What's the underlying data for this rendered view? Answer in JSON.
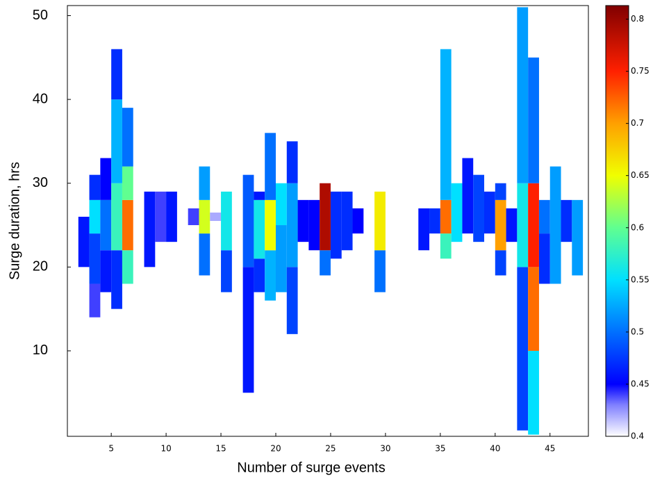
{
  "chart_data": {
    "type": "heatmap",
    "x_label": "Number of surge events",
    "y_label": "Surge duration, hrs",
    "xlim": [
      1,
      48.5
    ],
    "ylim": [
      -0.2,
      51.2
    ],
    "xticks": [
      5,
      10,
      15,
      20,
      25,
      30,
      35,
      40,
      45
    ],
    "yticks": [
      10,
      20,
      30,
      40,
      50
    ],
    "clim": [
      0.4,
      0.813
    ],
    "cticks": [
      0.4,
      0.45,
      0.5,
      0.55,
      0.6,
      0.65,
      0.7,
      0.75,
      0.8
    ],
    "colormap": [
      [
        0.4,
        "#ffffff"
      ],
      [
        0.43,
        "#8080ff"
      ],
      [
        0.45,
        "#0000ff"
      ],
      [
        0.5,
        "#0070ff"
      ],
      [
        0.55,
        "#00e0ff"
      ],
      [
        0.6,
        "#60ff90"
      ],
      [
        0.65,
        "#f0ff00"
      ],
      [
        0.7,
        "#ffa000"
      ],
      [
        0.75,
        "#ff2000"
      ],
      [
        0.813,
        "#800000"
      ]
    ],
    "columns": [
      {
        "x": 2,
        "segments": [
          [
            20,
            26,
            0.46
          ]
        ]
      },
      {
        "x": 3,
        "segments": [
          [
            14,
            18,
            0.44
          ],
          [
            18,
            24,
            0.48
          ],
          [
            24,
            28,
            0.55
          ],
          [
            28,
            31,
            0.47
          ]
        ]
      },
      {
        "x": 4,
        "segments": [
          [
            17,
            22,
            0.46
          ],
          [
            22,
            28,
            0.5
          ],
          [
            28,
            33,
            0.45
          ]
        ]
      },
      {
        "x": 5,
        "segments": [
          [
            15,
            22,
            0.47
          ],
          [
            22,
            30,
            0.58
          ],
          [
            30,
            40,
            0.53
          ],
          [
            40,
            46,
            0.47
          ]
        ]
      },
      {
        "x": 6,
        "segments": [
          [
            18,
            22,
            0.58
          ],
          [
            22,
            28,
            0.72
          ],
          [
            28,
            32,
            0.6
          ],
          [
            32,
            39,
            0.5
          ]
        ]
      },
      {
        "x": 8,
        "segments": [
          [
            20,
            29,
            0.46
          ]
        ]
      },
      {
        "x": 9,
        "segments": [
          [
            23,
            29,
            0.44
          ]
        ]
      },
      {
        "x": 10,
        "segments": [
          [
            23,
            29,
            0.46
          ]
        ]
      },
      {
        "x": 12,
        "segments": [
          [
            25,
            27,
            0.44
          ]
        ]
      },
      {
        "x": 13,
        "segments": [
          [
            19,
            24,
            0.5
          ],
          [
            24,
            28,
            0.64
          ],
          [
            28,
            32,
            0.52
          ]
        ]
      },
      {
        "x": 14,
        "segments": [
          [
            25.5,
            26.5,
            0.42
          ]
        ]
      },
      {
        "x": 15,
        "segments": [
          [
            17,
            22,
            0.48
          ],
          [
            22,
            29,
            0.56
          ]
        ]
      },
      {
        "x": 17,
        "segments": [
          [
            5,
            20,
            0.46
          ],
          [
            20,
            31,
            0.49
          ]
        ]
      },
      {
        "x": 18,
        "segments": [
          [
            17,
            21,
            0.47
          ],
          [
            21,
            28,
            0.56
          ],
          [
            28,
            29,
            0.46
          ]
        ]
      },
      {
        "x": 19,
        "segments": [
          [
            16,
            22,
            0.53
          ],
          [
            22,
            28,
            0.65
          ],
          [
            28,
            36,
            0.5
          ]
        ]
      },
      {
        "x": 20,
        "segments": [
          [
            17,
            25,
            0.52
          ],
          [
            25,
            30,
            0.55
          ]
        ]
      },
      {
        "x": 21,
        "segments": [
          [
            12,
            20,
            0.48
          ],
          [
            20,
            30,
            0.52
          ],
          [
            30,
            35,
            0.47
          ]
        ]
      },
      {
        "x": 22,
        "segments": [
          [
            23,
            28,
            0.45
          ]
        ]
      },
      {
        "x": 23,
        "segments": [
          [
            22,
            28,
            0.45
          ]
        ]
      },
      {
        "x": 24,
        "segments": [
          [
            19,
            22,
            0.5
          ],
          [
            22,
            30,
            0.79
          ]
        ]
      },
      {
        "x": 25,
        "segments": [
          [
            21,
            29,
            0.47
          ]
        ]
      },
      {
        "x": 26,
        "segments": [
          [
            22,
            29,
            0.47
          ]
        ]
      },
      {
        "x": 27,
        "segments": [
          [
            24,
            27,
            0.45
          ]
        ]
      },
      {
        "x": 29,
        "segments": [
          [
            17,
            22,
            0.5
          ],
          [
            22,
            29,
            0.66
          ]
        ]
      },
      {
        "x": 33,
        "segments": [
          [
            22,
            27,
            0.46
          ]
        ]
      },
      {
        "x": 34,
        "segments": [
          [
            24,
            27,
            0.47
          ]
        ]
      },
      {
        "x": 35,
        "segments": [
          [
            21,
            24,
            0.58
          ],
          [
            24,
            28,
            0.72
          ],
          [
            28,
            46,
            0.53
          ]
        ]
      },
      {
        "x": 36,
        "segments": [
          [
            23,
            30,
            0.55
          ]
        ]
      },
      {
        "x": 37,
        "segments": [
          [
            24,
            33,
            0.46
          ]
        ]
      },
      {
        "x": 38,
        "segments": [
          [
            23,
            31,
            0.48
          ]
        ]
      },
      {
        "x": 39,
        "segments": [
          [
            24,
            29,
            0.47
          ]
        ]
      },
      {
        "x": 40,
        "segments": [
          [
            19,
            22,
            0.48
          ],
          [
            22,
            28,
            0.7
          ],
          [
            28,
            30,
            0.48
          ]
        ]
      },
      {
        "x": 41,
        "segments": [
          [
            23,
            27,
            0.46
          ]
        ]
      },
      {
        "x": 42,
        "segments": [
          [
            0.5,
            20,
            0.48
          ],
          [
            20,
            30,
            0.56
          ],
          [
            30,
            51,
            0.52
          ]
        ]
      },
      {
        "x": 43,
        "segments": [
          [
            0,
            10,
            0.55
          ],
          [
            10,
            20,
            0.72
          ],
          [
            20,
            30,
            0.75
          ],
          [
            30,
            45,
            0.5
          ]
        ]
      },
      {
        "x": 44,
        "segments": [
          [
            18,
            24,
            0.47
          ],
          [
            24,
            28,
            0.5
          ]
        ]
      },
      {
        "x": 45,
        "segments": [
          [
            18,
            32,
            0.52
          ]
        ]
      },
      {
        "x": 46,
        "segments": [
          [
            23,
            28,
            0.47
          ]
        ]
      },
      {
        "x": 47,
        "segments": [
          [
            19,
            28,
            0.52
          ]
        ]
      }
    ]
  }
}
